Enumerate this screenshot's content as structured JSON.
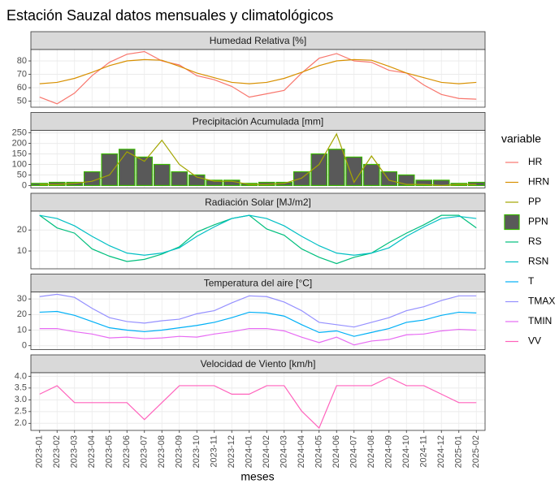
{
  "chart_data": {
    "type": "facet",
    "title": "Estación Sauzal datos mensuales y climatológicos",
    "x_label": "meses",
    "legend_title": "variable",
    "categories": [
      "2023-01",
      "2023-02",
      "2023-03",
      "2023-04",
      "2023-05",
      "2023-06",
      "2023-07",
      "2023-08",
      "2023-09",
      "2023-10",
      "2023-11",
      "2023-12",
      "2024-01",
      "2024-02",
      "2024-03",
      "2024-04",
      "2024-05",
      "2024-06",
      "2024-07",
      "2024-08",
      "2024-09",
      "2024-10",
      "2024-11",
      "2024-12",
      "2025-01",
      "2025-02"
    ],
    "panels": [
      {
        "title": "Humedad Relativa [%]",
        "ylim": [
          45.5,
          88.5
        ],
        "yticks": [
          50,
          60,
          70,
          80
        ],
        "series": [
          {
            "name": "HR",
            "type": "line",
            "color": "#F8766D",
            "values": [
              53,
              48,
              56,
              69,
              79,
              85,
              87,
              80,
              77,
              69,
              66,
              61,
              53,
              55.5,
              58,
              71,
              82,
              85.5,
              80,
              79,
              73,
              71,
              62,
              55,
              52,
              51.5
            ]
          },
          {
            "name": "HRN",
            "type": "line",
            "color": "#D89000",
            "values": [
              63,
              64,
              67,
              71.5,
              76.5,
              80,
              81,
              80.5,
              76,
              71,
              67.5,
              64,
              63,
              64,
              67,
              71.5,
              76.5,
              80,
              81,
              80.5,
              76,
              71,
              67.5,
              64,
              63,
              64
            ]
          }
        ]
      },
      {
        "title": "Precipitación Acumulada [mm]",
        "ylim": [
          -12,
          262
        ],
        "yticks": [
          0,
          50,
          100,
          150,
          200,
          250
        ],
        "series": [
          {
            "name": "PP",
            "type": "line",
            "color": "#A3A500",
            "values": [
              5,
              5,
              10,
              20,
              50,
              160,
              115,
              215,
              100,
              40,
              20,
              20,
              5,
              5,
              10,
              35,
              100,
              245,
              15,
              140,
              25,
              5,
              5,
              0,
              5,
              5
            ]
          },
          {
            "name": "PPN",
            "type": "bar",
            "color": "#595959",
            "edge_color": "#39B600",
            "values": [
              10,
              15,
              15,
              65,
              150,
              172,
              135,
              100,
              65,
              50,
              25,
              25,
              10,
              15,
              15,
              65,
              150,
              172,
              135,
              100,
              65,
              50,
              25,
              25,
              10,
              15
            ]
          }
        ]
      },
      {
        "title": "Radiación Solar [MJ/m2]",
        "ylim": [
          1.5,
          29
        ],
        "yticks": [
          10,
          20
        ],
        "series": [
          {
            "name": "RS",
            "type": "line",
            "color": "#00BF7D",
            "values": [
              27,
              21,
              18.5,
              11,
              7.5,
              5,
              6,
              8.5,
              12,
              19,
              22.5,
              25.5,
              27,
              20.5,
              17.5,
              11,
              7,
              4,
              7,
              9,
              14,
              18.5,
              22.5,
              27,
              27,
              21
            ]
          },
          {
            "name": "RSN",
            "type": "line",
            "color": "#00BFC4",
            "values": [
              27,
              25.5,
              22,
              17,
              12.5,
              9,
              8,
              9,
              11.5,
              17,
              21.5,
              25.5,
              27,
              25.5,
              22,
              17,
              12.5,
              9,
              8,
              9,
              11.5,
              17,
              21.5,
              25.5,
              26.5,
              25.5
            ]
          }
        ]
      },
      {
        "title": "Temperatura del aire [°C]",
        "ylim": [
          -2.5,
          34.5
        ],
        "yticks": [
          0,
          10,
          20,
          30
        ],
        "series": [
          {
            "name": "T",
            "type": "line",
            "color": "#00B0F6",
            "values": [
              21.5,
              22,
              19.5,
              15.5,
              11.5,
              10,
              9,
              10,
              11.5,
              13,
              15,
              18,
              21.5,
              21,
              19,
              13.5,
              8.5,
              9.5,
              6,
              8.5,
              11,
              15,
              16.5,
              19.5,
              21.5,
              21
            ]
          },
          {
            "name": "TMAX",
            "type": "line",
            "color": "#9590FF",
            "values": [
              31.5,
              33,
              31,
              24,
              18,
              15.5,
              14.5,
              16,
              17,
              20.5,
              22.5,
              27.5,
              32,
              31.5,
              28,
              22.5,
              15,
              13.5,
              12,
              15,
              18,
              22.5,
              25,
              29,
              32,
              32
            ]
          },
          {
            "name": "TMIN",
            "type": "line",
            "color": "#E76BF3",
            "values": [
              11,
              11,
              9,
              7.5,
              5,
              5.5,
              4.5,
              5,
              6,
              5.5,
              7.5,
              9,
              11,
              11,
              9.5,
              5.5,
              2,
              5.5,
              0.5,
              3,
              4,
              7,
              7.5,
              9.5,
              10.5,
              10
            ]
          }
        ]
      },
      {
        "title": "Velocidad de Viento [km/h]",
        "ylim": [
          1.7,
          4.15
        ],
        "yticks": [
          {
            "value": 2,
            "label": "2.0"
          },
          2.5,
          {
            "value": 3,
            "label": "3.0"
          },
          3.5,
          {
            "value": 4,
            "label": "4.0"
          }
        ],
        "series": [
          {
            "name": "VV",
            "type": "line",
            "color": "#FF62BC",
            "values": [
              3.24,
              3.6,
              2.88,
              2.88,
              2.88,
              2.88,
              2.16,
              2.88,
              3.6,
              3.6,
              3.6,
              3.24,
              3.24,
              3.6,
              3.6,
              2.52,
              1.8,
              3.6,
              3.6,
              3.6,
              3.96,
              3.6,
              3.6,
              3.24,
              2.88,
              2.88
            ]
          }
        ]
      }
    ]
  }
}
